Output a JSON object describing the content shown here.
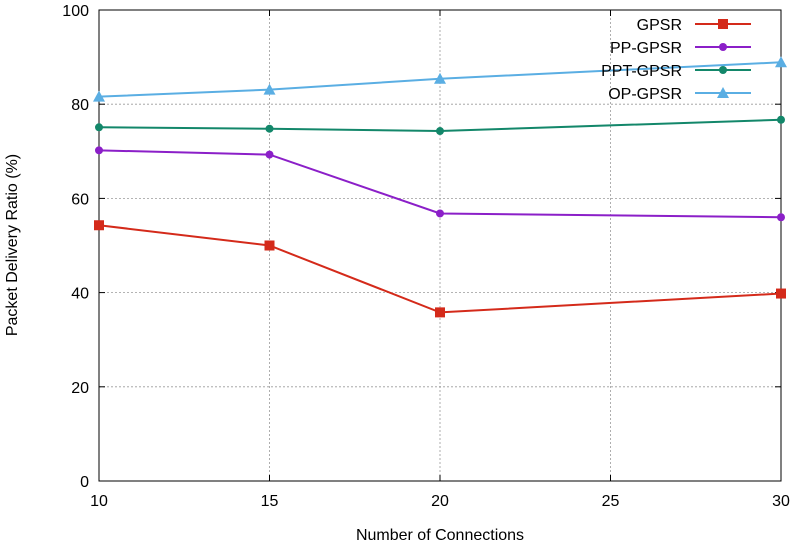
{
  "chart_data": {
    "type": "line",
    "title": "",
    "xlabel": "Number of Connections",
    "ylabel": "Packet Delivery Ratio (%)",
    "xlim": [
      10,
      30
    ],
    "ylim": [
      0,
      100
    ],
    "xticks": [
      10,
      15,
      20,
      25,
      30
    ],
    "yticks": [
      0,
      20,
      40,
      60,
      80,
      100
    ],
    "grid": true,
    "legend_position": "top-right",
    "x": [
      10,
      15,
      20,
      30
    ],
    "series": [
      {
        "name": "GPSR",
        "color": "#d42a1a",
        "marker": "square",
        "values": [
          54.3,
          50.0,
          35.8,
          39.8
        ]
      },
      {
        "name": "PP-GPSR",
        "color": "#8b1fc8",
        "marker": "circle",
        "values": [
          70.2,
          69.3,
          56.8,
          56.0
        ]
      },
      {
        "name": "PPT-GPSR",
        "color": "#13876a",
        "marker": "circle",
        "values": [
          75.1,
          74.8,
          74.3,
          76.7
        ]
      },
      {
        "name": "OP-GPSR",
        "color": "#5aaee3",
        "marker": "triangle",
        "values": [
          81.6,
          83.1,
          85.4,
          88.9
        ]
      }
    ]
  }
}
